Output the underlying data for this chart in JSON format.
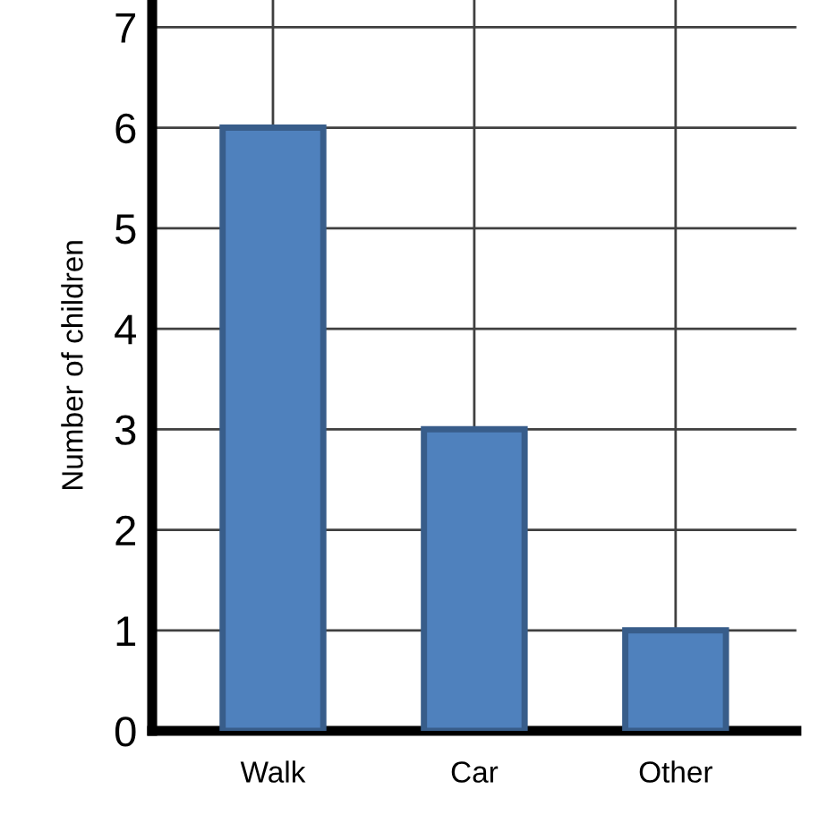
{
  "chart_data": {
    "type": "bar",
    "ylabel": "Number of children",
    "categories": [
      "Walk",
      "Car",
      "Other"
    ],
    "series": [
      {
        "color": "#4f81bd",
        "values": [
          6,
          3,
          1
        ]
      }
    ],
    "ylim": [
      0,
      7.27
    ],
    "yticks": [
      0,
      1,
      2,
      3,
      4,
      5,
      6,
      7
    ],
    "grid": true
  }
}
